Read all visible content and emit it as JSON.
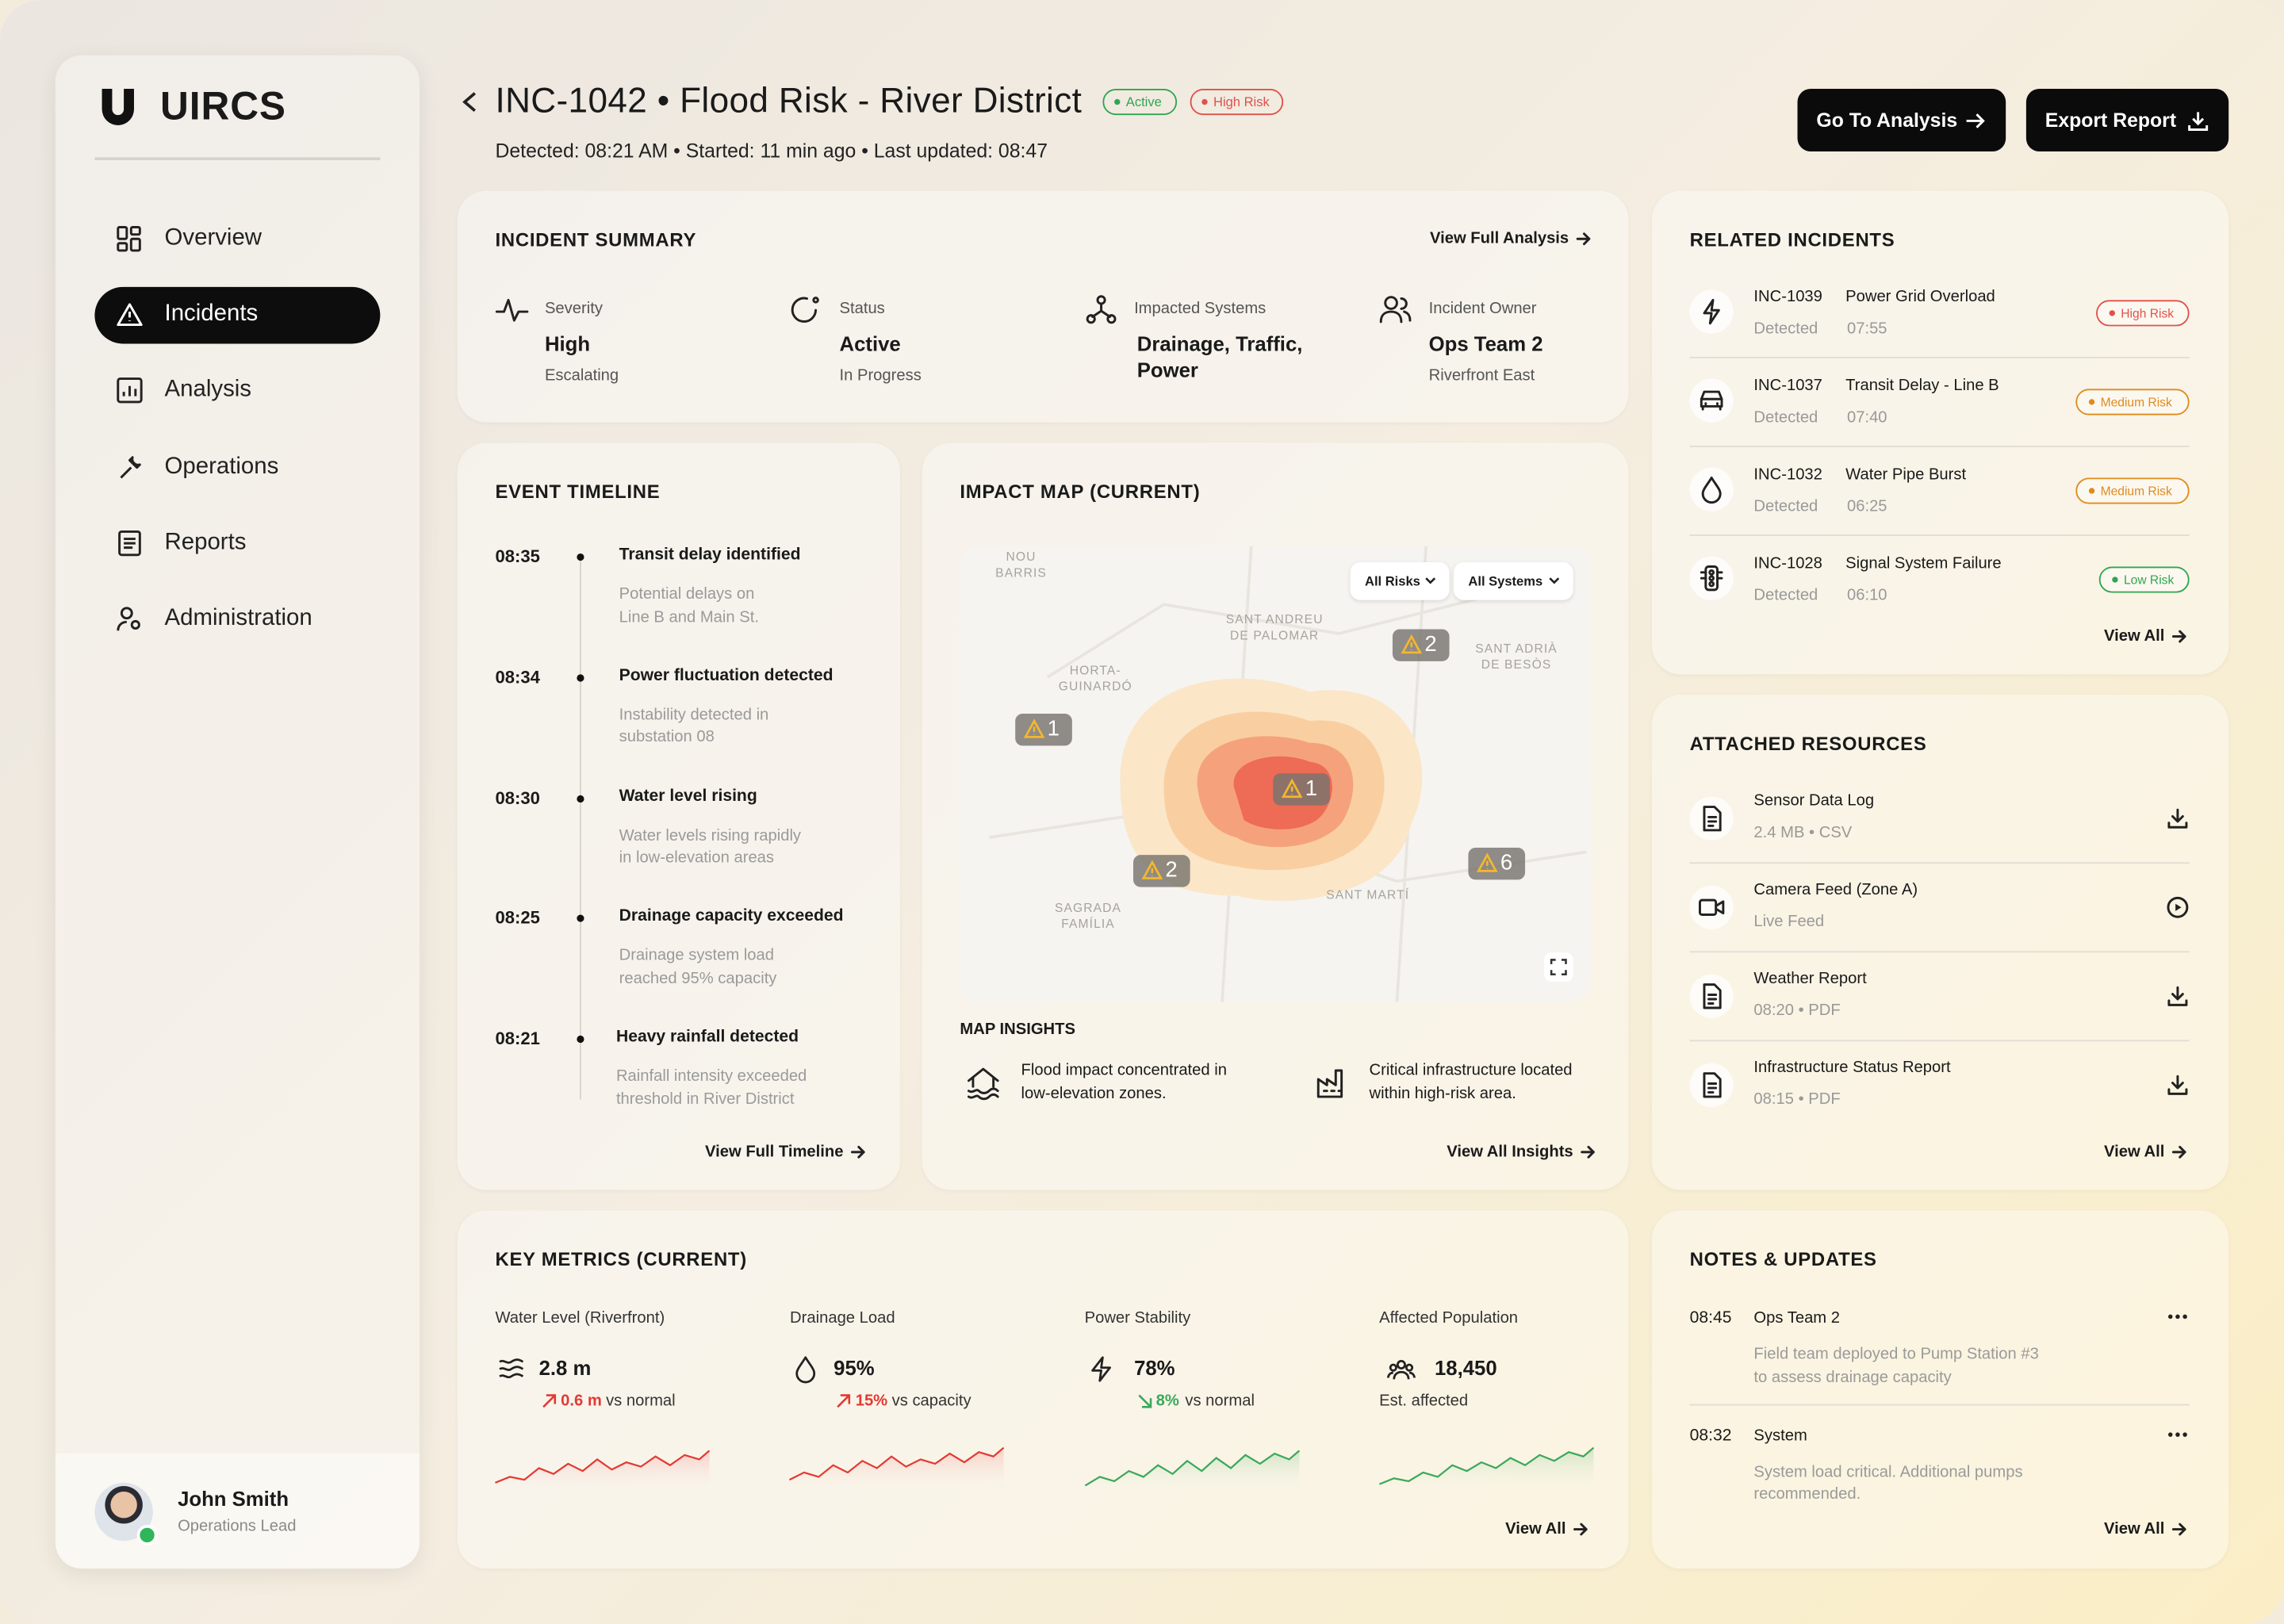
{
  "app": {
    "logo": "UIRCS",
    "nav": [
      {
        "label": "Overview"
      },
      {
        "label": "Incidents",
        "active": true
      },
      {
        "label": "Analysis"
      },
      {
        "label": "Operations"
      },
      {
        "label": "Reports"
      },
      {
        "label": "Administration"
      }
    ],
    "user": {
      "name": "John Smith",
      "role": "Operations Lead"
    }
  },
  "header": {
    "title": "INC-1042 • Flood Risk - River District",
    "badges": [
      {
        "label": "Active",
        "tone": "green"
      },
      {
        "label": "High Risk",
        "tone": "red"
      }
    ],
    "subtitle": "Detected: 08:21 AM • Started: 11 min ago • Last updated: 08:47",
    "actions": [
      "Go To Analysis",
      "Export Report"
    ]
  },
  "summary": {
    "title": "INCIDENT SUMMARY",
    "link": "View Full Analysis",
    "items": [
      {
        "label": "Severity",
        "value": "High",
        "note": "Escalating"
      },
      {
        "label": "Status",
        "value": "Active",
        "note": "In Progress"
      },
      {
        "label": "Impacted Systems",
        "value": "Drainage, Traffic,\nPower"
      },
      {
        "label": "Incident Owner",
        "value": "Ops Team 2",
        "note": "Riverfront East"
      }
    ]
  },
  "timeline": {
    "title": "EVENT TIMELINE",
    "link": "View Full Timeline",
    "events": [
      {
        "time": "08:35",
        "title": "Transit delay identified",
        "detail": "Potential delays on\nLine B and Main St."
      },
      {
        "time": "08:34",
        "title": "Power fluctuation detected",
        "detail": "Instability detected in\nsubstation 08"
      },
      {
        "time": "08:30",
        "title": "Water level rising",
        "detail": "Water levels rising rapidly\nin low-elevation areas"
      },
      {
        "time": "08:25",
        "title": "Drainage capacity exceeded",
        "detail": "Drainage system load\nreached 95% capacity"
      },
      {
        "time": "08:21",
        "title": "Heavy rainfall detected",
        "detail": "Rainfall intensity exceeded\nthreshold in River District"
      }
    ]
  },
  "map": {
    "title": "IMPACT MAP (CURRENT)",
    "filters": [
      "All Risks",
      "All Systems"
    ],
    "places": [
      "NOU\nBARRIS",
      "SANT ANDREU\nDE PALOMAR",
      "SANT ADRIÀ\nDE BESÒS",
      "HORTA-\nGUINARDÓ",
      "SANT MARTÍ",
      "SAGRADA\nFAMÍLIA"
    ],
    "markers": [
      1,
      2,
      1,
      2,
      6
    ],
    "insights_title": "MAP INSIGHTS",
    "insights": [
      "Flood impact concentrated in\nlow-elevation zones.",
      "Critical infrastructure located\nwithin high-risk area."
    ],
    "link": "View All Insights"
  },
  "metrics": {
    "title": "KEY METRICS (CURRENT)",
    "link": "View All",
    "items": [
      {
        "label": "Water Level (Riverfront)",
        "value": "2.8 m",
        "delta": "0.6 m",
        "note": "vs normal",
        "tone": "bad"
      },
      {
        "label": "Drainage Load",
        "value": "95%",
        "delta": "15%",
        "note": "vs capacity",
        "tone": "bad"
      },
      {
        "label": "Power Stability",
        "value": "78%",
        "delta": "8%",
        "note": "vs normal",
        "tone": "good"
      },
      {
        "label": "Affected Population",
        "value": "18,450",
        "note": "Est. affected",
        "tone": "good"
      }
    ]
  },
  "related": {
    "title": "RELATED INCIDENTS",
    "link": "View All",
    "items": [
      {
        "id": "INC-1039",
        "name": "Power Grid Overload",
        "label": "Detected",
        "time": "07:55",
        "badge": "High Risk",
        "tone": "red"
      },
      {
        "id": "INC-1037",
        "name": "Transit Delay - Line B",
        "label": "Detected",
        "time": "07:40",
        "badge": "Medium Risk",
        "tone": "orange"
      },
      {
        "id": "INC-1032",
        "name": "Water Pipe Burst",
        "label": "Detected",
        "time": "06:25",
        "badge": "Medium Risk",
        "tone": "orange"
      },
      {
        "id": "INC-1028",
        "name": "Signal System Failure",
        "label": "Detected",
        "time": "06:10",
        "badge": "Low Risk",
        "tone": "green"
      }
    ]
  },
  "resources": {
    "title": "ATTACHED RESOURCES",
    "link": "View All",
    "items": [
      {
        "name": "Sensor Data Log",
        "meta": "2.4 MB • CSV",
        "action": "download"
      },
      {
        "name": "Camera Feed (Zone A)",
        "meta": "Live Feed",
        "action": "play"
      },
      {
        "name": "Weather Report",
        "meta": "08:20 • PDF",
        "action": "download"
      },
      {
        "name": "Infrastructure Status Report",
        "meta": "08:15 • PDF",
        "action": "download"
      }
    ]
  },
  "notes": {
    "title": "NOTES & UPDATES",
    "link": "View All",
    "items": [
      {
        "time": "08:45",
        "author": "Ops Team 2",
        "text": "Field team deployed to Pump Station #3\nto assess drainage capacity"
      },
      {
        "time": "08:32",
        "author": "System",
        "text": "System load critical. Additional pumps\nrecommended."
      }
    ]
  }
}
